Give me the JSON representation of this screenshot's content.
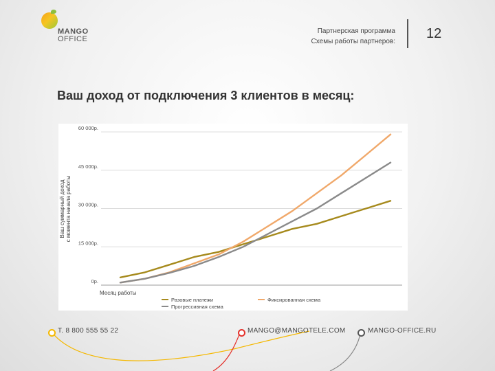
{
  "logo": {
    "line1": "MANGO",
    "line2": "OFFICE"
  },
  "header": {
    "line1": "Партнерская программа",
    "line2": "Схемы работы партнеров:",
    "page_number": "12"
  },
  "title": "Ваш доход от подключения 3 клиентов в месяц:",
  "chart_data": {
    "type": "line",
    "title": "",
    "ylabel": "Ваш суммарный доход с момента начала работы",
    "xlabel": "Месяц работы",
    "ylim": [
      0,
      60000
    ],
    "yticks": [
      0,
      15000,
      30000,
      45000,
      60000
    ],
    "ytick_labels": [
      "0р.",
      "15 000р.",
      "30 000р.",
      "45 000р.",
      "60 000р."
    ],
    "x": [
      1,
      2,
      3,
      4,
      5,
      6,
      7,
      8,
      9,
      10,
      11,
      12
    ],
    "legend_position": "bottom",
    "grid": true,
    "series": [
      {
        "name": "Разовые платежи",
        "color": "#a68a1d",
        "values": [
          3000,
          5000,
          8000,
          11000,
          13000,
          16000,
          19000,
          22000,
          24000,
          27000,
          30000,
          33000
        ]
      },
      {
        "name": "Фиксированная схема",
        "color": "#f0a86a",
        "values": [
          1000,
          2500,
          5000,
          8500,
          12000,
          17000,
          23000,
          29000,
          36000,
          43000,
          51000,
          59000
        ]
      },
      {
        "name": "Прогрессивная схема",
        "color": "#8a8a8a",
        "values": [
          1000,
          2500,
          4800,
          7500,
          11000,
          15000,
          20000,
          25000,
          30000,
          36000,
          42000,
          48000
        ]
      }
    ]
  },
  "footer": {
    "phone": "Т. 8 800 555 55 22",
    "email": "MANGO@MANGOTELE.COM",
    "site": "MANGO-OFFICE.RU",
    "phone_dot_color": "#f5b800",
    "email_dot_color": "#e4312b",
    "site_dot_color": "#555555"
  }
}
